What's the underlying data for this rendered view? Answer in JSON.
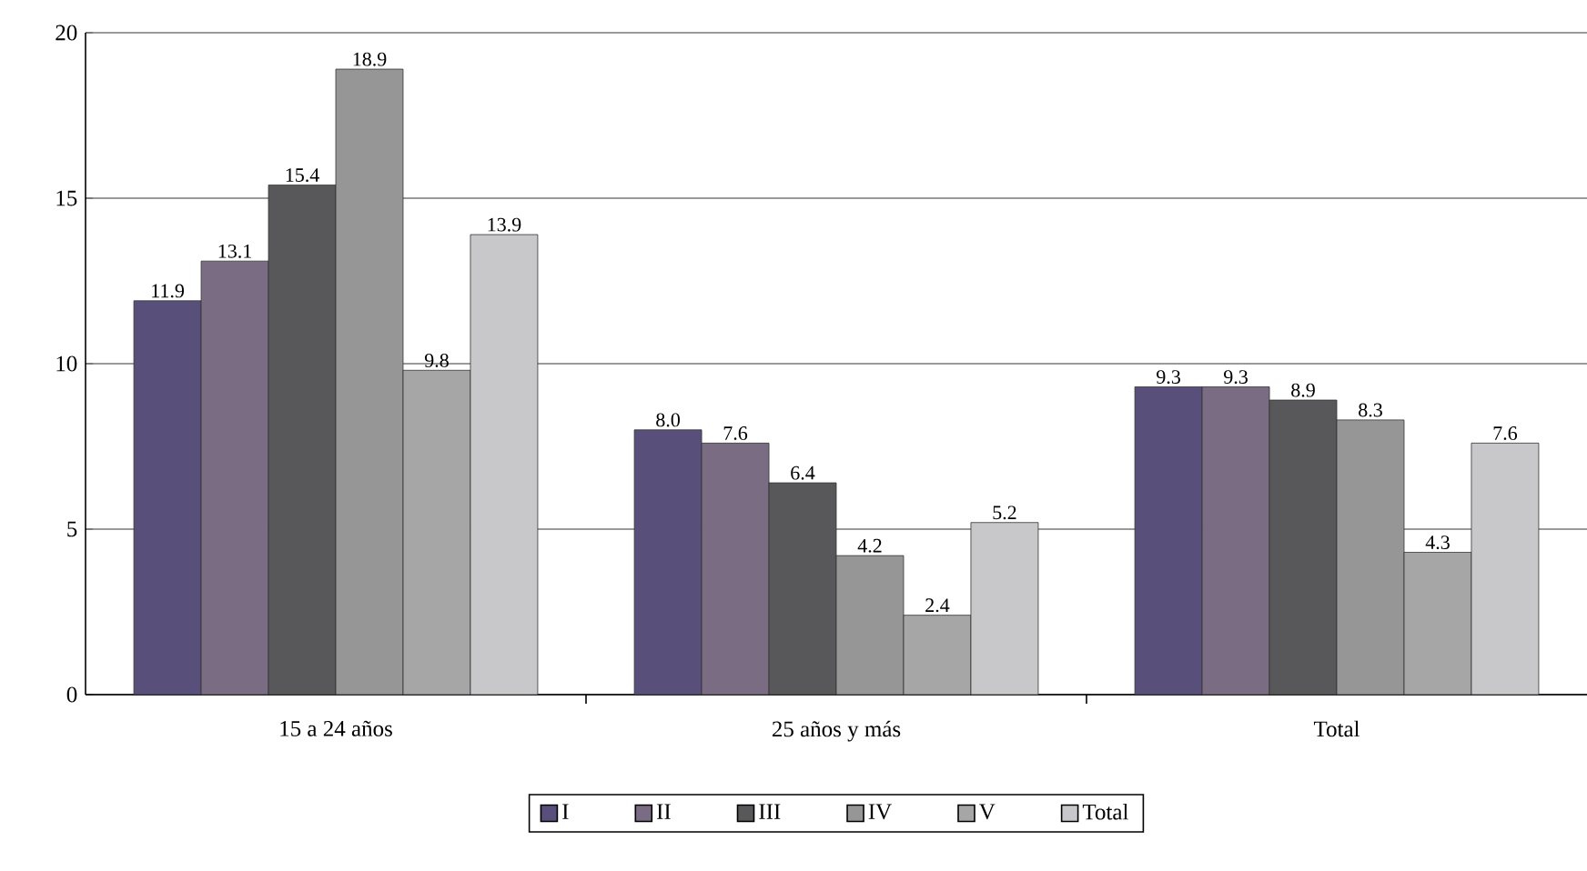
{
  "chart_data": {
    "type": "bar",
    "categories": [
      "15 a 24 años",
      "25 años y más",
      "Total"
    ],
    "series": [
      {
        "name": "I",
        "color": "#58507a",
        "values": [
          11.9,
          8.0,
          9.3
        ],
        "value_labels": [
          "11.9",
          "8.0",
          "9.3"
        ]
      },
      {
        "name": "II",
        "color": "#7a6c82",
        "values": [
          13.1,
          7.6,
          9.3
        ],
        "value_labels": [
          "13.1",
          "7.6",
          "9.3"
        ]
      },
      {
        "name": "III",
        "color": "#58585a",
        "values": [
          15.4,
          6.4,
          8.9
        ],
        "value_labels": [
          "15.4",
          "6.4",
          "8.9"
        ]
      },
      {
        "name": "IV",
        "color": "#969696",
        "values": [
          18.9,
          4.2,
          8.3
        ],
        "value_labels": [
          "18.9",
          "4.2",
          "8.3"
        ]
      },
      {
        "name": "V",
        "color": "#a6a6a6",
        "values": [
          9.8,
          2.4,
          4.3
        ],
        "value_labels": [
          "9.8",
          "2.4",
          "4.3"
        ]
      },
      {
        "name": "Total",
        "color": "#c8c8ca",
        "values": [
          13.9,
          5.2,
          7.6
        ],
        "value_labels": [
          "13.9",
          "5.2",
          "7.6"
        ]
      }
    ],
    "ylim": [
      0,
      20
    ],
    "yticks": [
      0,
      5,
      10,
      15,
      20
    ],
    "grid": "y",
    "legend": "bottom"
  }
}
